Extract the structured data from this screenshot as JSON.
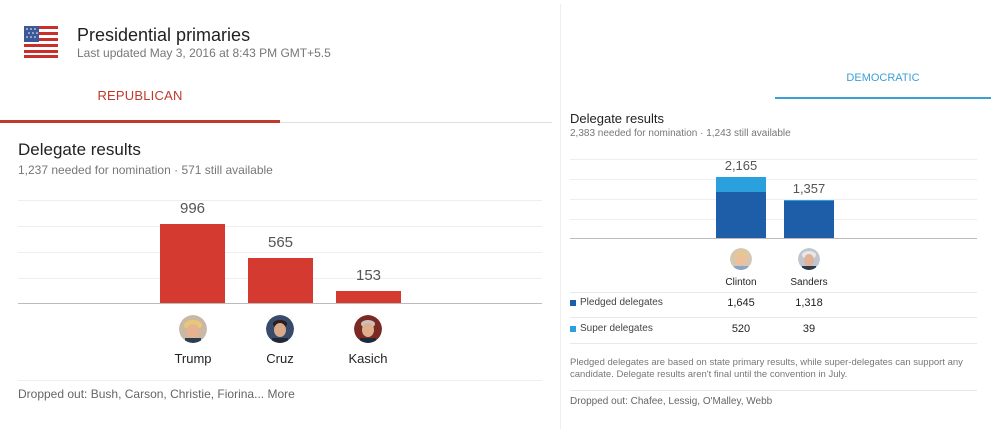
{
  "header": {
    "title": "Presidential primaries",
    "updated": "Last updated May 3, 2016 at 8:43 PM GMT+5.5"
  },
  "colors": {
    "republican": "#d43a2f",
    "pledged": "#1e5ea8",
    "super": "#2aa0dd",
    "democratic_tab": "#3ba0d6"
  },
  "republican": {
    "tab_label": "REPUBLICAN",
    "results_title": "Delegate results",
    "results_sub": "1,237 needed for nomination · 571 still available",
    "candidates": [
      {
        "name": "Trump",
        "delegates": "996"
      },
      {
        "name": "Cruz",
        "delegates": "565"
      },
      {
        "name": "Kasich",
        "delegates": "153"
      }
    ],
    "dropped": "Dropped out: Bush, Carson, Christie, Fiorina... More"
  },
  "democratic": {
    "tab_label": "DEMOCRATIC",
    "results_title": "Delegate results",
    "results_sub": "2,383 needed for nomination · 1,243 still available",
    "candidates": [
      {
        "name": "Clinton",
        "total": "2,165",
        "pledged": "1,645",
        "super": "520"
      },
      {
        "name": "Sanders",
        "total": "1,357",
        "pledged": "1,318",
        "super": "39"
      }
    ],
    "legend": {
      "pledged": "Pledged delegates",
      "super": "Super delegates"
    },
    "note": "Pledged delegates are based on state primary results, while super-delegates can support any candidate. Delegate results aren't final until the convention in July.",
    "dropped": "Dropped out: Chafee, Lessig, O'Malley, Webb"
  },
  "chart_data": [
    {
      "type": "bar",
      "title": "Delegate results",
      "categories": [
        "Trump",
        "Cruz",
        "Kasich"
      ],
      "values": [
        996,
        565,
        153
      ]
    },
    {
      "type": "bar",
      "title": "Delegate results",
      "categories": [
        "Clinton",
        "Sanders"
      ],
      "series": [
        {
          "name": "Pledged delegates",
          "values": [
            1645,
            1318
          ]
        },
        {
          "name": "Super delegates",
          "values": [
            520,
            39
          ]
        }
      ]
    }
  ]
}
